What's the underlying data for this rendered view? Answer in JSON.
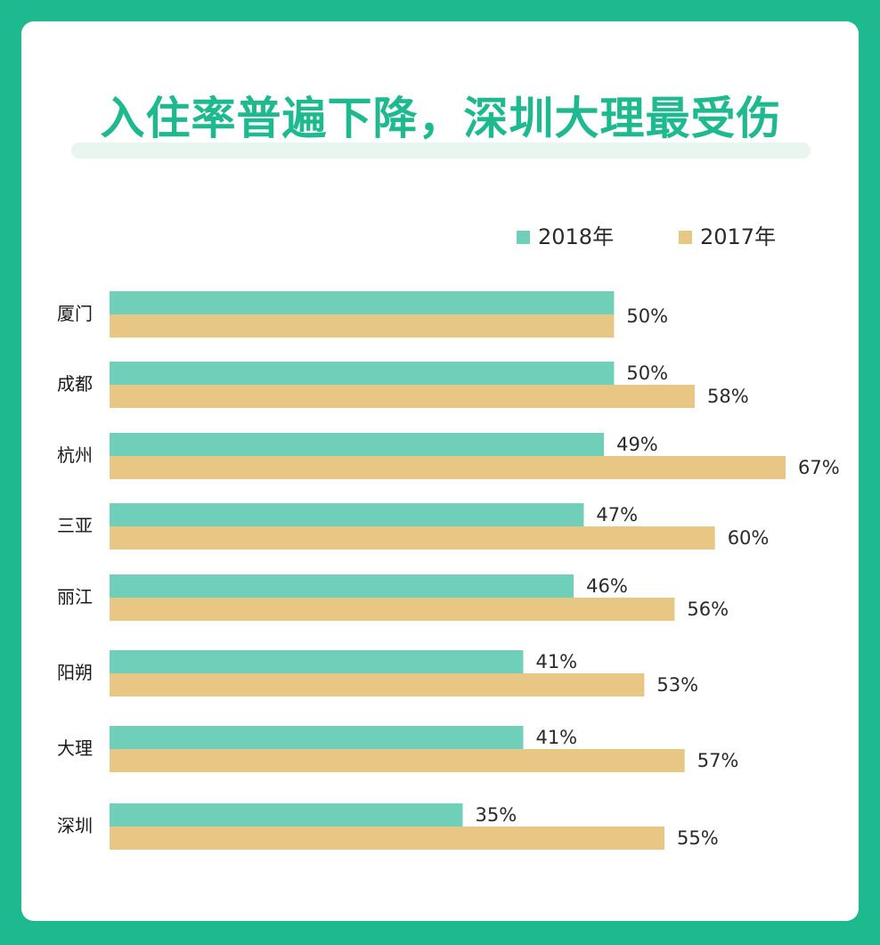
{
  "chart_data": {
    "type": "bar",
    "orientation": "horizontal",
    "title": "入住率普遍下降，深圳大理最受伤",
    "categories": [
      "厦门",
      "成都",
      "杭州",
      "三亚",
      "丽江",
      "阳朔",
      "大理",
      "深圳"
    ],
    "series": [
      {
        "name": "2018年",
        "color": "#6fcfb8",
        "values": [
          50,
          50,
          49,
          47,
          46,
          41,
          41,
          35
        ],
        "labels": [
          "",
          "50%",
          "49%",
          "47%",
          "46%",
          "41%",
          "41%",
          "35%"
        ]
      },
      {
        "name": "2017年",
        "color": "#e8c785",
        "values": [
          50,
          58,
          67,
          60,
          56,
          53,
          57,
          55
        ],
        "labels": [
          "",
          "58%",
          "67%",
          "60%",
          "56%",
          "53%",
          "57%",
          "55%"
        ]
      }
    ],
    "shared_labels": [
      "50%",
      "",
      "",
      "",
      "",
      "",
      "",
      ""
    ],
    "xlim": [
      0,
      67
    ],
    "legend_position": "top-right",
    "grid": false
  },
  "colors": {
    "frame": "#1eb98f",
    "title": "#1eb98f",
    "series_2018": "#6fcfb8",
    "series_2017": "#e8c785"
  }
}
